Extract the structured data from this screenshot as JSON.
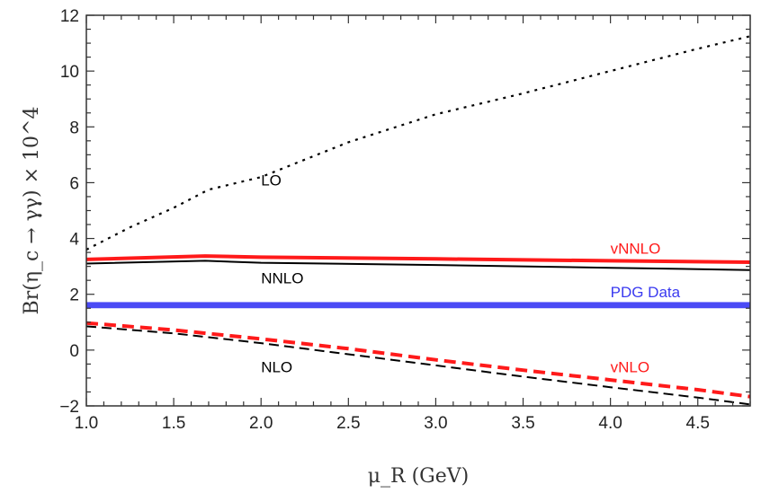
{
  "chart_data": {
    "type": "line",
    "xlabel": "μ_R (GeV)",
    "ylabel": "Br(η_c → γγ) × 10^4",
    "xlim": [
      1.0,
      4.8
    ],
    "ylim": [
      -2,
      12
    ],
    "xticks": [
      1.0,
      1.5,
      2.0,
      2.5,
      3.0,
      3.5,
      4.0,
      4.5
    ],
    "xtick_labels": [
      "1.0",
      "1.5",
      "2.0",
      "2.5",
      "3.0",
      "3.5",
      "4.0",
      "4.5"
    ],
    "yticks": [
      -2,
      0,
      2,
      4,
      6,
      8,
      10,
      12
    ],
    "ytick_labels": [
      "−2",
      "0",
      "2",
      "4",
      "6",
      "8",
      "10",
      "12"
    ],
    "grid": false,
    "series": [
      {
        "name": "LO",
        "color": "#000000",
        "style": "dotted",
        "x": [
          1.0,
          1.25,
          1.5,
          1.7,
          2.0,
          2.5,
          3.0,
          3.5,
          4.0,
          4.5,
          4.8
        ],
        "y": [
          3.6,
          4.4,
          5.1,
          5.75,
          6.2,
          7.45,
          8.45,
          9.2,
          10.0,
          10.8,
          11.25
        ]
      },
      {
        "name": "vNNLO",
        "color": "#ff1a1a",
        "style": "solid-thick",
        "x": [
          1.0,
          1.68,
          2.0,
          3.0,
          4.0,
          4.8
        ],
        "y": [
          3.25,
          3.37,
          3.33,
          3.27,
          3.2,
          3.15
        ]
      },
      {
        "name": "NNLO",
        "color": "#000000",
        "style": "solid",
        "x": [
          1.0,
          1.68,
          2.0,
          3.0,
          4.0,
          4.8
        ],
        "y": [
          3.1,
          3.2,
          3.13,
          3.05,
          2.95,
          2.87
        ]
      },
      {
        "name": "vNLO",
        "color": "#ff1a1a",
        "style": "dashed-thick",
        "x": [
          1.0,
          1.5,
          2.0,
          2.5,
          3.0,
          3.5,
          4.0,
          4.5,
          4.8
        ],
        "y": [
          0.97,
          0.72,
          0.4,
          0.05,
          -0.35,
          -0.72,
          -1.07,
          -1.42,
          -1.67
        ]
      },
      {
        "name": "NLO",
        "color": "#000000",
        "style": "dashed",
        "x": [
          1.0,
          1.5,
          2.0,
          2.5,
          3.0,
          3.5,
          4.0,
          4.5,
          4.8
        ],
        "y": [
          0.85,
          0.6,
          0.25,
          -0.15,
          -0.55,
          -0.95,
          -1.33,
          -1.7,
          -1.95
        ]
      }
    ],
    "bands": [
      {
        "name": "PDG Data",
        "color": "#4a4af5",
        "ymin": 1.5,
        "ymax": 1.72
      }
    ],
    "annotations": [
      {
        "text": "LO",
        "x": 2.0,
        "y": 5.9,
        "color": "#000000"
      },
      {
        "text": "NNLO",
        "x": 2.0,
        "y": 2.4,
        "color": "#000000"
      },
      {
        "text": "NLO",
        "x": 2.0,
        "y": -0.8,
        "color": "#000000"
      },
      {
        "text": "vNNLO",
        "x": 4.0,
        "y": 3.45,
        "color": "#ff1a1a"
      },
      {
        "text": "PDG Data",
        "x": 4.0,
        "y": 1.9,
        "color": "#3a3af0"
      },
      {
        "text": "vNLO",
        "x": 4.0,
        "y": -0.8,
        "color": "#ff1a1a"
      }
    ]
  }
}
